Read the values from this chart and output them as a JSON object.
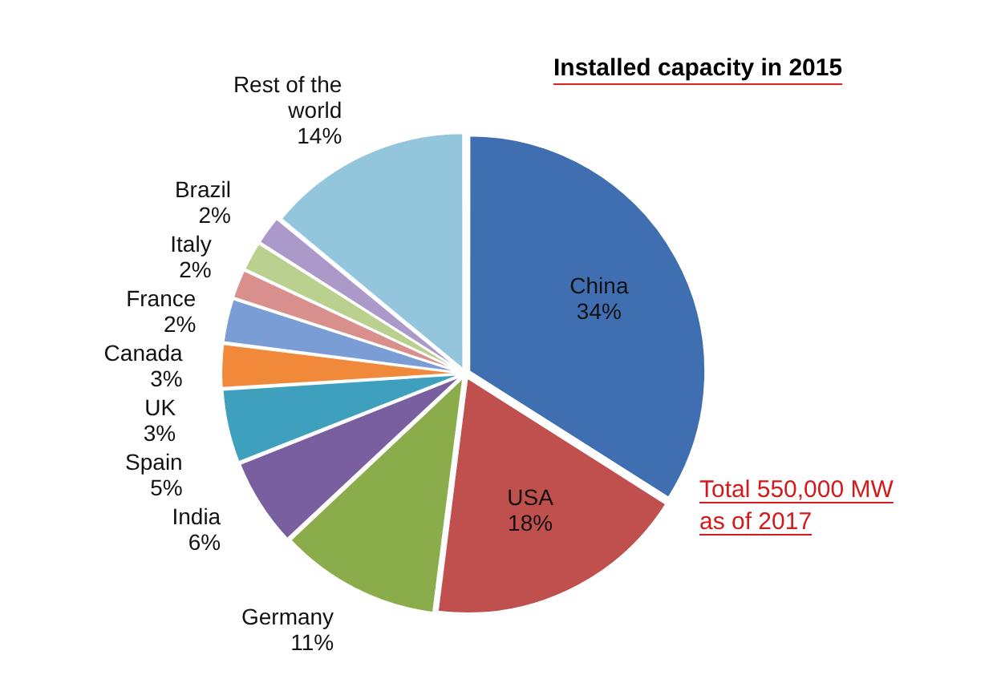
{
  "chart_data": {
    "type": "pie",
    "title": "Installed capacity in 2015",
    "categories": [
      "China",
      "USA",
      "Germany",
      "India",
      "Spain",
      "UK",
      "Canada",
      "France",
      "Italy",
      "Brazil",
      "Rest of the world"
    ],
    "values": [
      34,
      18,
      11,
      6,
      5,
      3,
      3,
      2,
      2,
      2,
      14
    ],
    "value_labels": [
      "34%",
      "18%",
      "11%",
      "6%",
      "5%",
      "3%",
      "3%",
      "2%",
      "2%",
      "2%",
      "14%"
    ],
    "colors": [
      "#3f6fb0",
      "#c0504d",
      "#8aac4a",
      "#7a5fa0",
      "#3fa0bd",
      "#f08a3a",
      "#7b9dd6",
      "#d98f8c",
      "#b9d08e",
      "#aa99c9",
      "#93c6dc"
    ],
    "legend": false,
    "annotations": [
      "Total 550,000 MW as of 2017"
    ]
  }
}
